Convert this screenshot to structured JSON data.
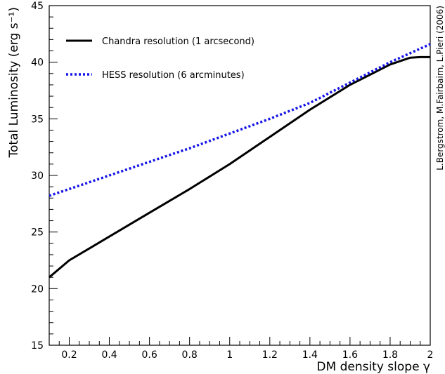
{
  "chart_data": {
    "type": "line",
    "xlabel": "DM density slope γ",
    "ylabel": "Total Luminosity (erg s⁻¹)",
    "xlim": [
      0.1,
      2.0
    ],
    "ylim": [
      15,
      45
    ],
    "x_ticks": [
      "0.2",
      "0.4",
      "0.6",
      "0.8",
      "1",
      "1.2",
      "1.4",
      "1.6",
      "1.8",
      "2"
    ],
    "y_ticks": [
      "15",
      "20",
      "25",
      "30",
      "35",
      "40",
      "45"
    ],
    "grid": false,
    "legend_position": "top-left",
    "credit": "L.Bergstrom, M.Fairbairn, L.Pieri (2006)",
    "series": [
      {
        "name": "Chandra resolution (1 arcsecond)",
        "color": "#000000",
        "style": "solid",
        "x": [
          0.1,
          0.2,
          0.4,
          0.6,
          0.8,
          1.0,
          1.2,
          1.4,
          1.6,
          1.8,
          1.9,
          1.95,
          2.0
        ],
        "y": [
          21.0,
          22.5,
          24.6,
          26.7,
          28.8,
          31.0,
          33.4,
          35.8,
          38.0,
          39.8,
          40.4,
          40.45,
          40.45
        ]
      },
      {
        "name": "HESS resolution (6 arcminutes)",
        "color": "#1414e6",
        "style": "dotted",
        "x": [
          0.1,
          0.2,
          0.4,
          0.6,
          0.8,
          1.0,
          1.2,
          1.4,
          1.6,
          1.8,
          2.0
        ],
        "y": [
          28.2,
          28.8,
          30.0,
          31.2,
          32.4,
          33.7,
          35.0,
          36.4,
          38.2,
          40.0,
          41.6
        ]
      }
    ]
  }
}
